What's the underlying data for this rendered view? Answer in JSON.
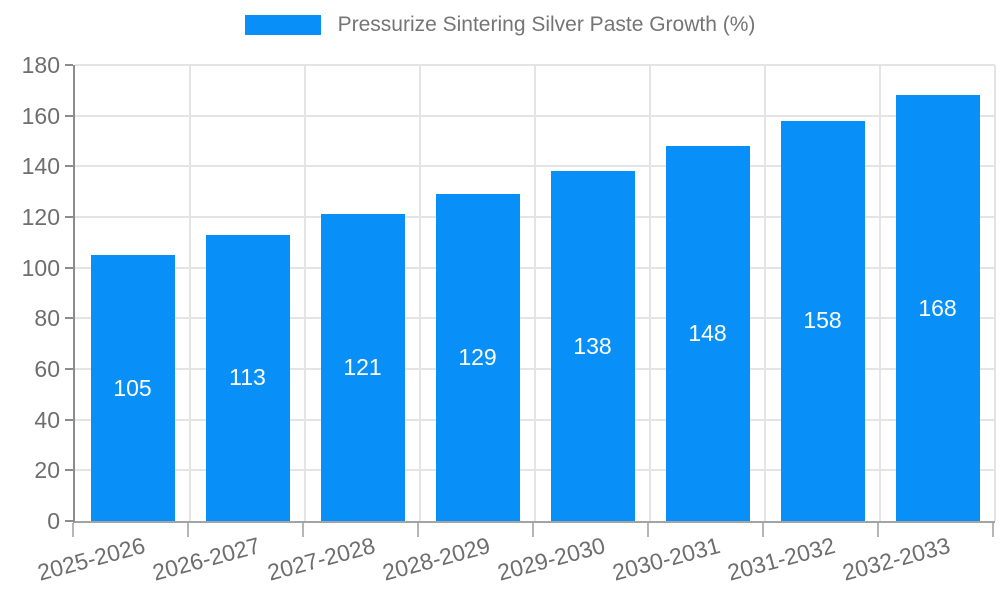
{
  "legend": {
    "label": "Pressurize Sintering Silver Paste Growth (%)",
    "swatch_color": "#0890f8"
  },
  "chart_data": {
    "type": "bar",
    "title": "Pressurize Sintering Silver Paste Growth (%)",
    "categories": [
      "2025-2026",
      "2026-2027",
      "2027-2028",
      "2028-2029",
      "2029-2030",
      "2030-2031",
      "2031-2032",
      "2032-2033"
    ],
    "values": [
      105,
      113,
      121,
      129,
      138,
      148,
      158,
      168
    ],
    "xlabel": "",
    "ylabel": "",
    "ylim": [
      0,
      180
    ],
    "ytick_interval": 20,
    "yticks": [
      0,
      20,
      40,
      60,
      80,
      100,
      120,
      140,
      160,
      180
    ],
    "grid": true,
    "legend_position": "top",
    "x_label_rotation_deg": -15,
    "bar_label_position": "inside-center"
  },
  "colors": {
    "bar": "#0890f8",
    "grid": "#e4e4e4",
    "axis": "#8c8c8c",
    "tick_text": "#6e6e6e",
    "legend_text": "#757575",
    "value_label": "#ffffff",
    "background": "#ffffff"
  }
}
